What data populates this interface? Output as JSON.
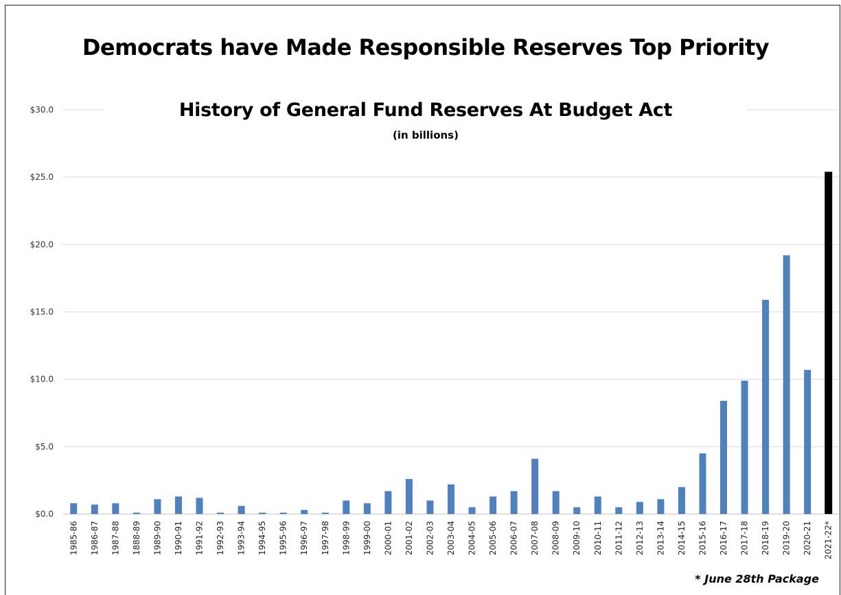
{
  "chart_data": {
    "type": "bar",
    "title": "Democrats have Made Responsible Reserves Top Priority",
    "subtitle": "History of General Fund Reserves At Budget Act",
    "units_note": "(in billions)",
    "footnote": "* June 28th Package",
    "ylim": [
      0,
      30
    ],
    "y_ticks": [
      "$0.0",
      "$5.0",
      "$10.0",
      "$15.0",
      "$20.0",
      "$25.0",
      "$30.0"
    ],
    "grid": true,
    "colors": {
      "default": "#4f81bd",
      "highlight": "#000000"
    },
    "categories": [
      "1985-86",
      "1986-87",
      "1987-88",
      "1888-89",
      "1989-90",
      "1990-91",
      "1991-92",
      "1992-93",
      "1993-94",
      "1994-95",
      "1995-96",
      "1996-97",
      "1997-98",
      "1998-99",
      "1999-00",
      "2000-01",
      "2001-02",
      "2002-03",
      "2003-04",
      "2004-05",
      "2005-06",
      "2006-07",
      "2007-08",
      "2008-09",
      "2009-10",
      "2010-11",
      "2011-12",
      "2012-13",
      "2013-14",
      "2014-15",
      "2015-16",
      "2016-17",
      "2017-18",
      "2018-19",
      "2019-20",
      "2020-21",
      "2021-22*"
    ],
    "values": [
      0.8,
      0.7,
      0.8,
      0.1,
      1.1,
      1.3,
      1.2,
      0.1,
      0.6,
      0.1,
      0.1,
      0.3,
      0.1,
      1.0,
      0.8,
      1.7,
      2.6,
      1.0,
      2.2,
      0.5,
      1.3,
      1.7,
      4.1,
      1.7,
      0.5,
      1.3,
      0.5,
      0.9,
      1.1,
      2.0,
      4.5,
      8.4,
      9.9,
      15.9,
      19.2,
      10.7,
      25.4
    ],
    "highlight_index": 36
  }
}
